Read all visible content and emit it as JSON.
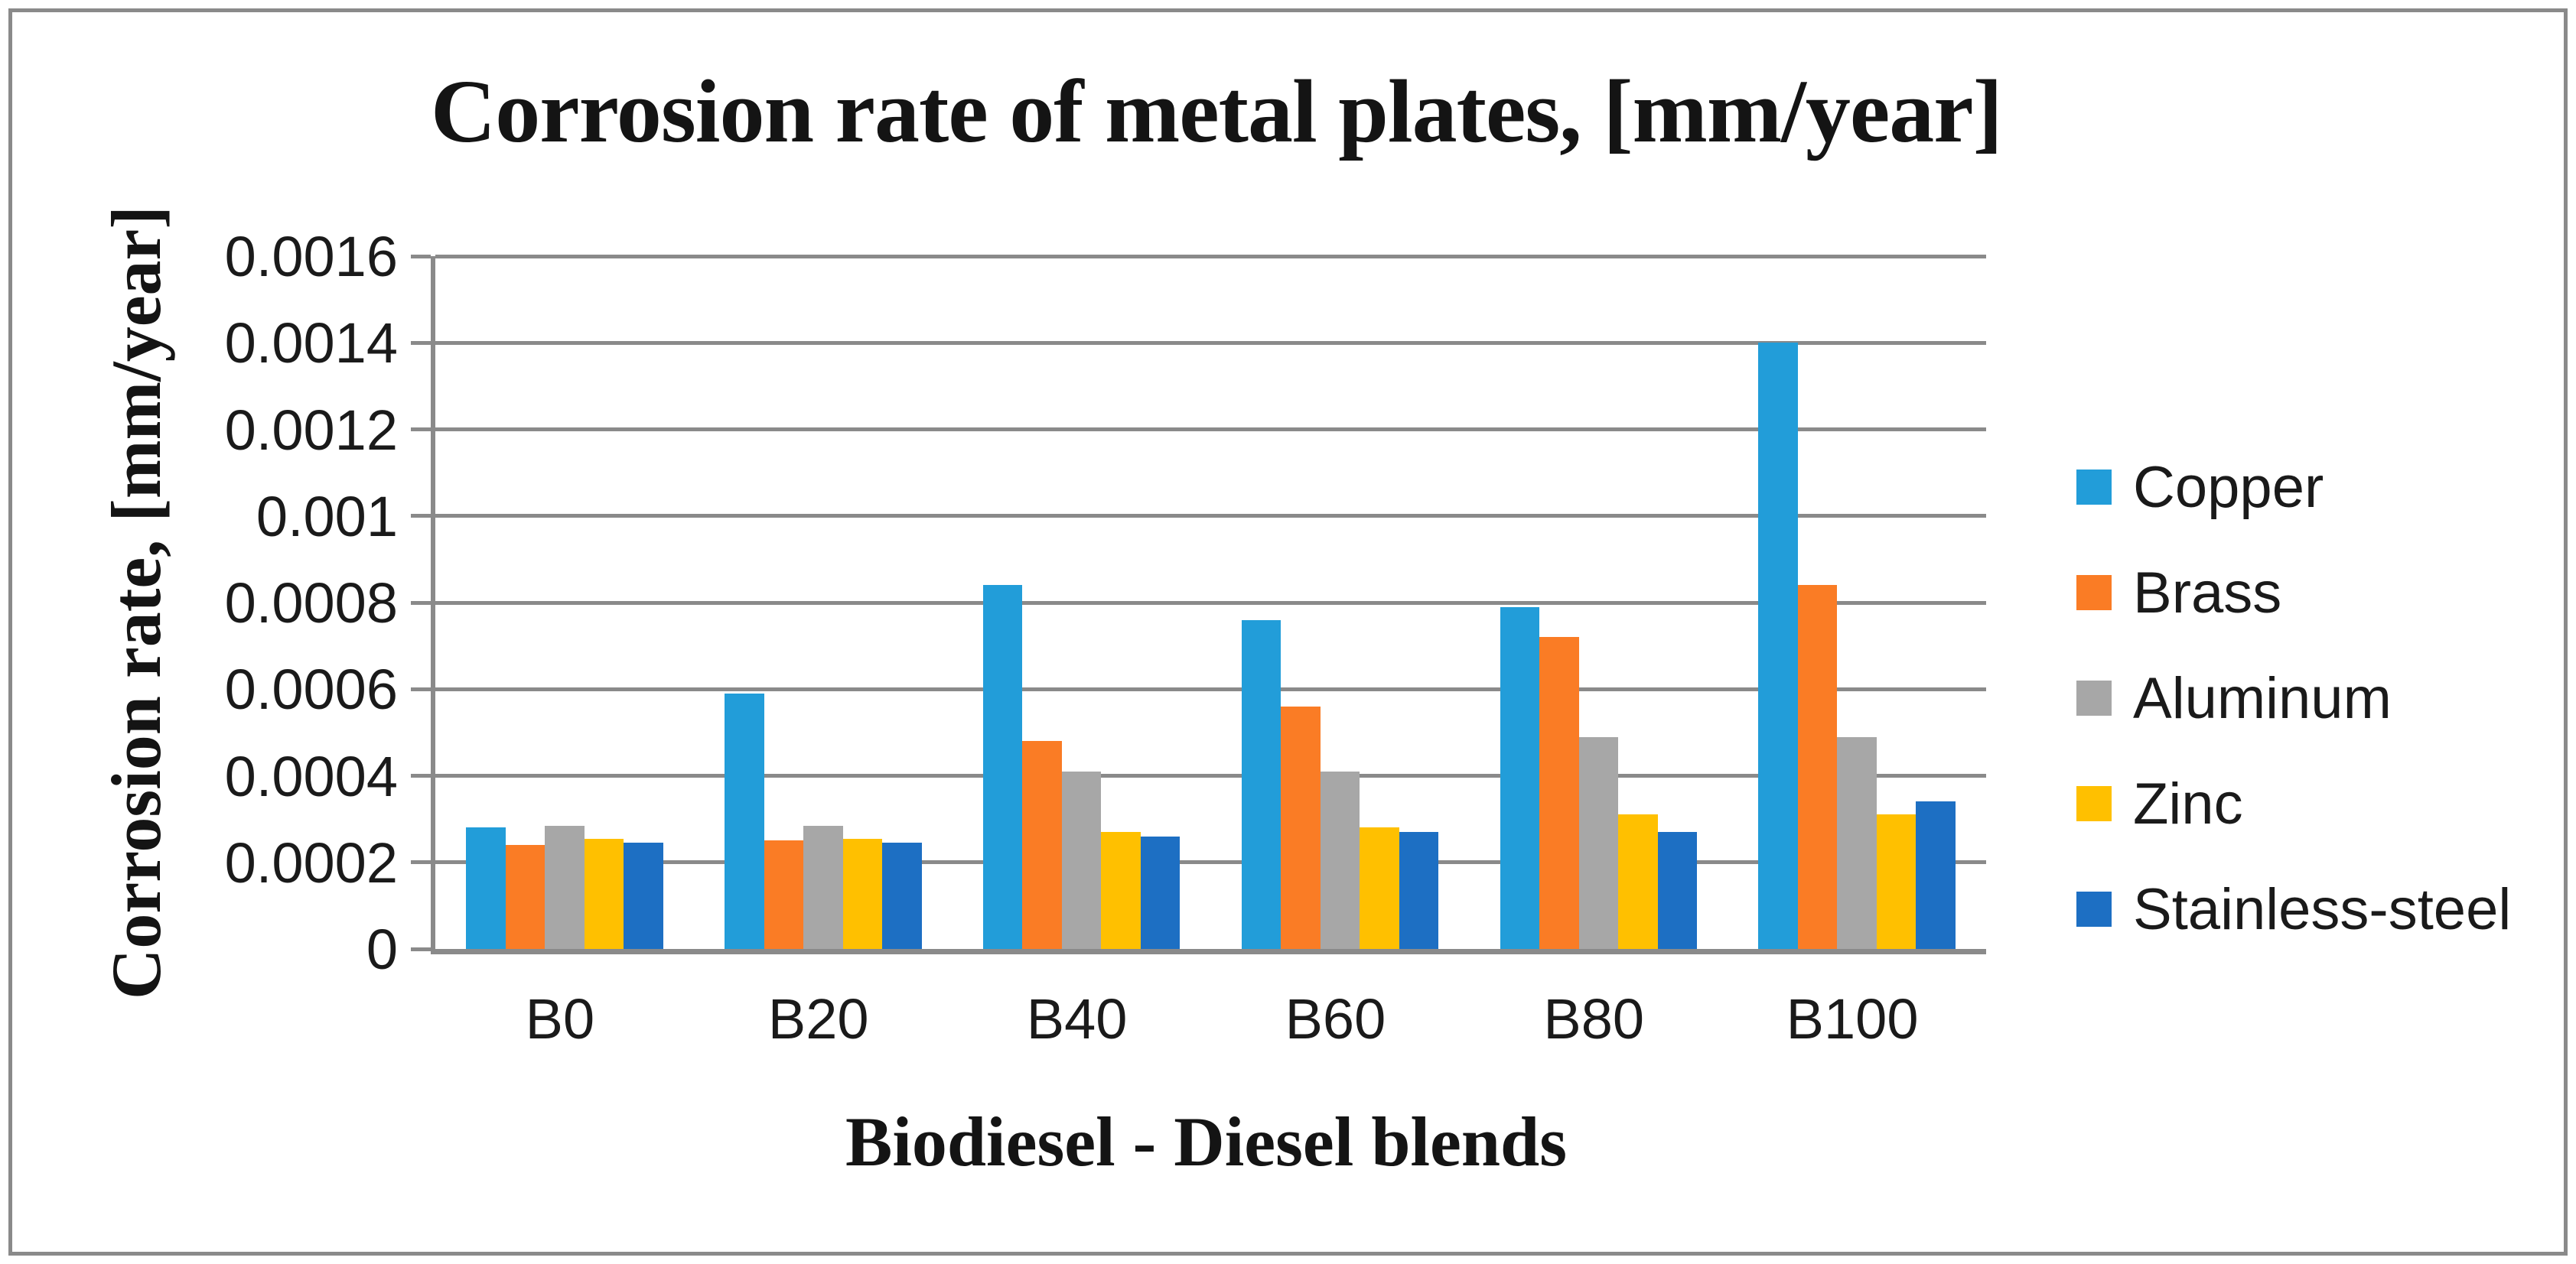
{
  "chart_data": {
    "type": "bar",
    "title": "Corrosion rate of metal plates, [mm/year]",
    "xlabel": "Biodiesel - Diesel blends",
    "ylabel": "Corrosion rate, [mm/year]",
    "categories": [
      "B0",
      "B20",
      "B40",
      "B60",
      "B80",
      "B100"
    ],
    "series": [
      {
        "name": "Copper",
        "color": "#229DD9",
        "values": [
          0.00028,
          0.00059,
          0.00084,
          0.00076,
          0.00079,
          0.0014
        ]
      },
      {
        "name": "Brass",
        "color": "#FA7C25",
        "values": [
          0.00024,
          0.00025,
          0.00048,
          0.00056,
          0.00072,
          0.00084
        ]
      },
      {
        "name": "Aluminum",
        "color": "#A7A7A7",
        "values": [
          0.000285,
          0.000285,
          0.00041,
          0.00041,
          0.00049,
          0.00049
        ]
      },
      {
        "name": "Zinc",
        "color": "#FFC000",
        "values": [
          0.000255,
          0.000255,
          0.00027,
          0.00028,
          0.00031,
          0.00031
        ]
      },
      {
        "name": "Stainless-steel",
        "color": "#1D6FC3",
        "values": [
          0.000245,
          0.000245,
          0.00026,
          0.00027,
          0.00027,
          0.00034
        ]
      }
    ],
    "ylim": [
      0,
      0.0016
    ],
    "ytick_values": [
      0,
      0.0002,
      0.0004,
      0.0006,
      0.0008,
      0.001,
      0.0012,
      0.0014,
      0.0016
    ],
    "ytick_labels": [
      "0",
      "0.0002",
      "0.0004",
      "0.0006",
      "0.0008",
      "0.001",
      "0.0012",
      "0.0014",
      "0.0016"
    ],
    "grid": true,
    "legend_position": "right",
    "axis_color": "#8A8A8A",
    "plot_background": "#FFFFFF"
  }
}
